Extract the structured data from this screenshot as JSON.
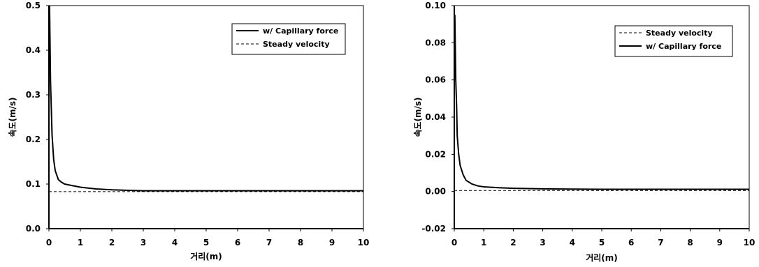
{
  "chart_data": [
    {
      "type": "line",
      "xlabel": "거리(m)",
      "ylabel": "속도(m/s)",
      "xlim": [
        0,
        10
      ],
      "ylim": [
        0,
        0.5
      ],
      "xticks": [
        "0",
        "1",
        "2",
        "3",
        "4",
        "5",
        "6",
        "7",
        "8",
        "9",
        "10"
      ],
      "yticks": [
        "0.0",
        "0.1",
        "0.2",
        "0.3",
        "0.4",
        "0.5"
      ],
      "legend_position": "top-right",
      "series": [
        {
          "name": "w/ Capillary force",
          "style": "solid",
          "x": [
            0.02,
            0.05,
            0.1,
            0.15,
            0.2,
            0.3,
            0.4,
            0.5,
            0.7,
            1.0,
            1.5,
            2.0,
            2.5,
            3.0,
            4.0,
            5.0,
            6.0,
            7.0,
            8.0,
            9.0,
            10.0
          ],
          "y": [
            0.5,
            0.33,
            0.21,
            0.155,
            0.13,
            0.11,
            0.104,
            0.1,
            0.097,
            0.093,
            0.089,
            0.087,
            0.086,
            0.085,
            0.085,
            0.085,
            0.085,
            0.085,
            0.085,
            0.085,
            0.085
          ]
        },
        {
          "name": "Steady velocity",
          "style": "dashed",
          "x": [
            0,
            10
          ],
          "y": [
            0.083,
            0.083
          ]
        }
      ]
    },
    {
      "type": "line",
      "xlabel": "거리(m)",
      "ylabel": "속도(m/s)",
      "xlim": [
        0,
        10
      ],
      "ylim": [
        -0.02,
        0.1
      ],
      "xticks": [
        "0",
        "1",
        "2",
        "3",
        "4",
        "5",
        "6",
        "7",
        "8",
        "9",
        "10"
      ],
      "yticks": [
        "-0.02",
        "0.00",
        "0.02",
        "0.04",
        "0.06",
        "0.08",
        "0.10"
      ],
      "legend_position": "top-right",
      "series": [
        {
          "name": "Steady velocity",
          "style": "dashed",
          "x": [
            0,
            10
          ],
          "y": [
            0.0005,
            0.0005
          ]
        },
        {
          "name": "w/ Capillary force",
          "style": "solid",
          "x": [
            0.02,
            0.05,
            0.08,
            0.1,
            0.15,
            0.2,
            0.3,
            0.4,
            0.6,
            0.8,
            1.0,
            1.5,
            2.0,
            3.0,
            4.0,
            5.0,
            6.0,
            7.0,
            8.0,
            9.0,
            10.0
          ],
          "y": [
            0.095,
            0.06,
            0.045,
            0.03,
            0.02,
            0.014,
            0.009,
            0.006,
            0.004,
            0.003,
            0.0025,
            0.002,
            0.0017,
            0.0014,
            0.0013,
            0.0012,
            0.0012,
            0.0012,
            0.0012,
            0.0012,
            0.0012
          ]
        }
      ]
    }
  ]
}
